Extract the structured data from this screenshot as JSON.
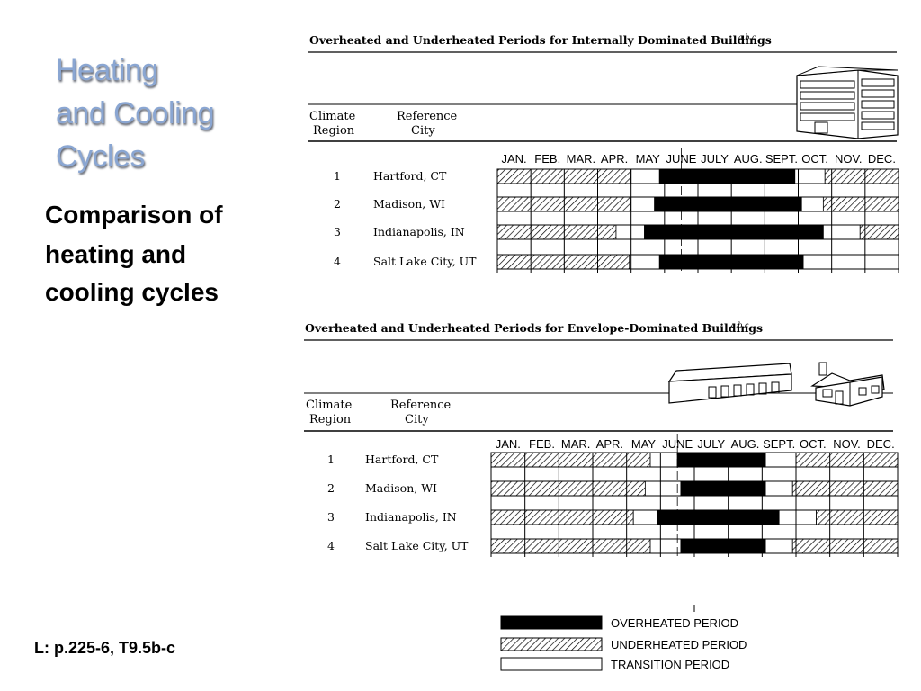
{
  "slide": {
    "title_line1": "Heating",
    "title_line2": "and Cooling",
    "title_line3": "Cycles",
    "subtitle_line1": "Comparison of",
    "subtitle_line2": "heating and",
    "subtitle_line3": "cooling cycles",
    "footnote": "L: p.225-6, T9.5b-c"
  },
  "months": [
    "JAN.",
    "FEB.",
    "MAR.",
    "APR.",
    "MAY",
    "JUNE",
    "JULY",
    "AUG.",
    "SEPT.",
    "OCT.",
    "NOV.",
    "DEC."
  ],
  "tables": [
    {
      "title": "Overheated and Underheated Periods for Internally Dominated Buildings",
      "title_superscript": "a,b,c",
      "header_region": [
        "Climate",
        "Region"
      ],
      "header_city": [
        "Reference",
        "City"
      ],
      "rows": [
        {
          "region": "1",
          "city": "Hartford, CT",
          "segments": [
            {
              "type": "under",
              "from": 0,
              "to": 4.0
            },
            {
              "type": "transition",
              "from": 4.0,
              "to": 4.85
            },
            {
              "type": "over",
              "from": 4.85,
              "to": 8.9
            },
            {
              "type": "transition",
              "from": 8.9,
              "to": 9.8
            },
            {
              "type": "under",
              "from": 9.8,
              "to": 12
            }
          ]
        },
        {
          "region": "2",
          "city": "Madison, WI",
          "segments": [
            {
              "type": "under",
              "from": 0,
              "to": 4.0
            },
            {
              "type": "transition",
              "from": 4.0,
              "to": 4.7
            },
            {
              "type": "over",
              "from": 4.7,
              "to": 9.1
            },
            {
              "type": "transition",
              "from": 9.1,
              "to": 9.75
            },
            {
              "type": "under",
              "from": 9.75,
              "to": 12
            }
          ]
        },
        {
          "region": "3",
          "city": "Indianapolis, IN",
          "segments": [
            {
              "type": "under",
              "from": 0,
              "to": 3.55
            },
            {
              "type": "transition",
              "from": 3.55,
              "to": 4.4
            },
            {
              "type": "over",
              "from": 4.4,
              "to": 9.75
            },
            {
              "type": "transition",
              "from": 9.75,
              "to": 10.85
            },
            {
              "type": "under",
              "from": 10.85,
              "to": 12
            }
          ]
        },
        {
          "region": "4",
          "city": "Salt Lake City, UT",
          "segments": [
            {
              "type": "under",
              "from": 0,
              "to": 3.95
            },
            {
              "type": "transition",
              "from": 3.95,
              "to": 4.85
            },
            {
              "type": "over",
              "from": 4.85,
              "to": 9.15
            },
            {
              "type": "transition",
              "from": 9.15,
              "to": 12
            }
          ]
        }
      ]
    },
    {
      "title": "Overheated and Underheated Periods for Envelope-Dominated Buildings",
      "title_superscript": "a,b,c",
      "header_region": [
        "Climate",
        "Region"
      ],
      "header_city": [
        "Reference",
        "City"
      ],
      "rows": [
        {
          "region": "1",
          "city": "Hartford, CT",
          "segments": [
            {
              "type": "under",
              "from": 0,
              "to": 4.7
            },
            {
              "type": "transition",
              "from": 4.7,
              "to": 5.5
            },
            {
              "type": "over",
              "from": 5.5,
              "to": 8.1
            },
            {
              "type": "transition",
              "from": 8.1,
              "to": 9.0
            },
            {
              "type": "under",
              "from": 9.0,
              "to": 12
            }
          ]
        },
        {
          "region": "2",
          "city": "Madison, WI",
          "segments": [
            {
              "type": "under",
              "from": 0,
              "to": 4.55
            },
            {
              "type": "transition",
              "from": 4.55,
              "to": 5.6
            },
            {
              "type": "over",
              "from": 5.6,
              "to": 8.1
            },
            {
              "type": "transition",
              "from": 8.1,
              "to": 8.9
            },
            {
              "type": "under",
              "from": 8.9,
              "to": 12
            }
          ]
        },
        {
          "region": "3",
          "city": "Indianapolis, IN",
          "segments": [
            {
              "type": "under",
              "from": 0,
              "to": 4.2
            },
            {
              "type": "transition",
              "from": 4.2,
              "to": 4.9
            },
            {
              "type": "over",
              "from": 4.9,
              "to": 8.5
            },
            {
              "type": "transition",
              "from": 8.5,
              "to": 9.6
            },
            {
              "type": "under",
              "from": 9.6,
              "to": 12
            }
          ]
        },
        {
          "region": "4",
          "city": "Salt Lake City, UT",
          "segments": [
            {
              "type": "under",
              "from": 0,
              "to": 4.7
            },
            {
              "type": "transition",
              "from": 4.7,
              "to": 5.6
            },
            {
              "type": "over",
              "from": 5.6,
              "to": 8.1
            },
            {
              "type": "transition",
              "from": 8.1,
              "to": 8.9
            },
            {
              "type": "under",
              "from": 8.9,
              "to": 12
            }
          ]
        }
      ]
    }
  ],
  "legend": [
    {
      "type": "over",
      "label": "OVERHEATED PERIOD"
    },
    {
      "type": "under",
      "label": "UNDERHEATED PERIOD"
    },
    {
      "type": "transition",
      "label": "TRANSITION PERIOD"
    }
  ],
  "colors": {
    "title": "#8aa6d2",
    "over": "#000000",
    "under_hatch": "#000000",
    "transition": "#ffffff"
  }
}
